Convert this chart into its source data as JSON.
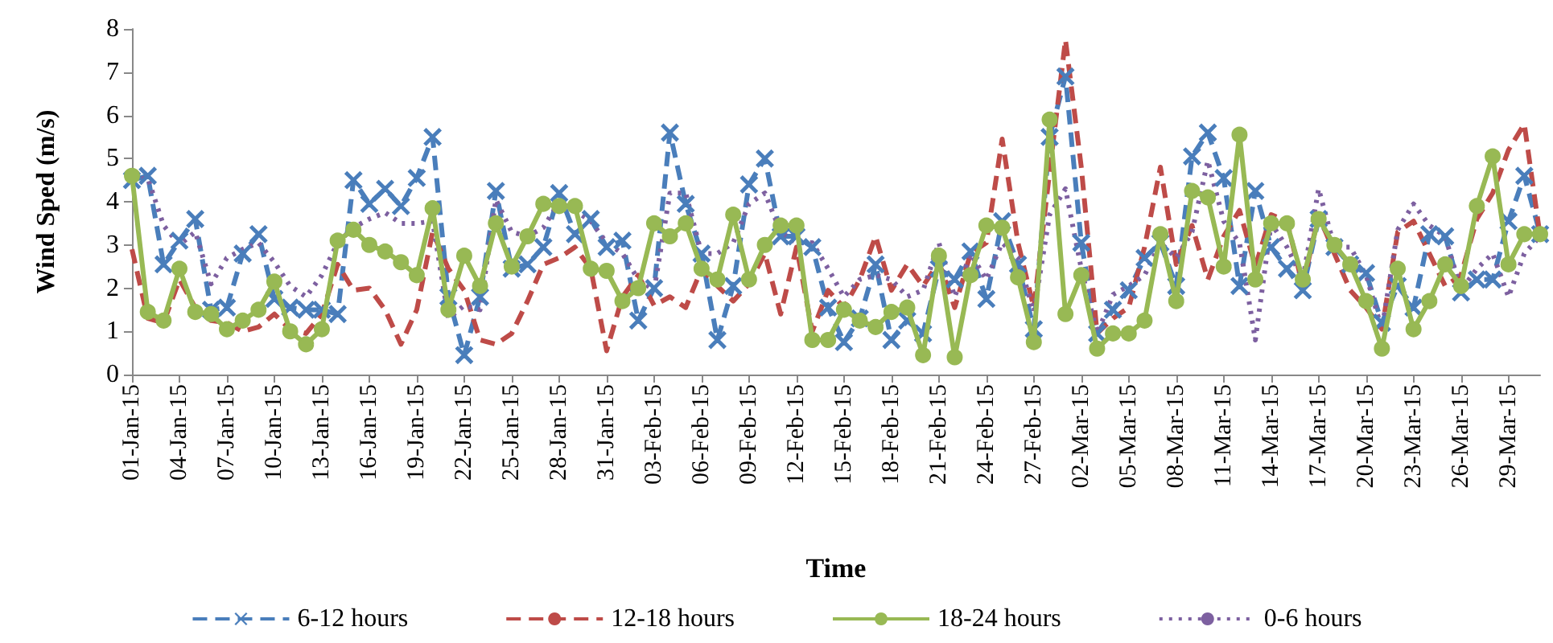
{
  "chart_data": {
    "type": "line",
    "xlabel": "Time",
    "ylabel": "Wind Sped (m/s)",
    "categories": [
      "01-Jan-15",
      null,
      null,
      "04-Jan-15",
      null,
      null,
      "07-Jan-15",
      null,
      null,
      "10-Jan-15",
      null,
      null,
      "13-Jan-15",
      null,
      null,
      "16-Jan-15",
      null,
      null,
      "19-Jan-15",
      null,
      null,
      "22-Jan-15",
      null,
      null,
      "25-Jan-15",
      null,
      null,
      "28-Jan-15",
      null,
      null,
      "31-Jan-15",
      null,
      null,
      "03-Feb-15",
      null,
      null,
      "06-Feb-15",
      null,
      null,
      "09-Feb-15",
      null,
      null,
      "12-Feb-15",
      null,
      null,
      "15-Feb-15",
      null,
      null,
      "18-Feb-15",
      null,
      null,
      "21-Feb-15",
      null,
      null,
      "24-Feb-15",
      null,
      null,
      "27-Feb-15",
      null,
      null,
      "02-Mar-15",
      null,
      null,
      "05-Mar-15",
      null,
      null,
      "08-Mar-15",
      null,
      null,
      "11-Mar-15",
      null,
      null,
      "14-Mar-15",
      null,
      null,
      "17-Mar-15",
      null,
      null,
      "20-Mar-15",
      null,
      null,
      "23-Mar-15",
      null,
      null,
      "26-Mar-15",
      null,
      null,
      "29-Mar-15",
      null,
      null
    ],
    "series": [
      {
        "name": "6-12 hours",
        "color": "#4a7ebb",
        "marker": "cross",
        "line_style": "dashed",
        "values": [
          4.5,
          4.6,
          2.55,
          3.1,
          3.6,
          1.5,
          1.55,
          2.8,
          3.25,
          1.75,
          1.55,
          1.5,
          1.5,
          1.4,
          4.5,
          3.95,
          4.3,
          3.9,
          4.55,
          5.5,
          1.8,
          0.45,
          1.8,
          4.25,
          2.45,
          2.55,
          2.95,
          4.2,
          3.25,
          3.6,
          2.95,
          3.1,
          1.25,
          2.0,
          5.6,
          3.95,
          2.8,
          0.8,
          2.05,
          4.4,
          5.0,
          3.2,
          3.2,
          2.95,
          1.55,
          0.75,
          1.3,
          2.55,
          0.8,
          1.25,
          0.95,
          2.45,
          2.2,
          2.85,
          1.75,
          3.55,
          2.55,
          1.05,
          5.5,
          6.9,
          3.05,
          0.95,
          1.5,
          1.95,
          2.7,
          3.05,
          2.05,
          5.05,
          5.6,
          4.55,
          2.05,
          4.25,
          2.95,
          2.45,
          1.95,
          3.6,
          2.95,
          2.55,
          2.35,
          1.2,
          2.05,
          1.55,
          3.25,
          3.2,
          1.9,
          2.2,
          2.2,
          3.55,
          4.6,
          3.25
        ]
      },
      {
        "name": "12-18 hours",
        "color": "#be4b48",
        "marker": "none",
        "line_style": "dashed",
        "values": [
          2.9,
          1.3,
          1.2,
          2.2,
          1.55,
          1.25,
          1.2,
          1.0,
          1.1,
          1.4,
          1.05,
          0.95,
          1.4,
          2.55,
          1.95,
          2.0,
          1.5,
          0.7,
          1.5,
          3.3,
          2.45,
          1.95,
          0.8,
          0.7,
          0.95,
          1.7,
          2.55,
          2.7,
          2.95,
          2.45,
          0.55,
          1.8,
          2.3,
          1.6,
          1.8,
          1.55,
          2.45,
          2.05,
          1.7,
          2.1,
          2.8,
          1.4,
          2.95,
          1.0,
          1.95,
          1.55,
          2.2,
          3.2,
          1.95,
          2.55,
          2.05,
          2.6,
          1.55,
          2.8,
          3.05,
          5.45,
          3.05,
          1.55,
          4.7,
          7.75,
          4.8,
          0.95,
          1.3,
          1.55,
          2.95,
          4.8,
          2.55,
          3.45,
          2.2,
          3.2,
          3.8,
          2.5,
          3.7,
          3.55,
          2.05,
          3.7,
          2.8,
          1.95,
          1.55,
          1.05,
          3.3,
          3.55,
          2.8,
          2.05,
          2.3,
          3.6,
          4.2,
          5.2,
          5.8,
          3.2
        ]
      },
      {
        "name": "18-24 hours",
        "color": "#98b954",
        "marker": "circle",
        "line_style": "solid",
        "values": [
          4.6,
          1.45,
          1.25,
          2.45,
          1.45,
          1.4,
          1.05,
          1.25,
          1.5,
          2.15,
          1.0,
          0.7,
          1.05,
          3.1,
          3.35,
          3.0,
          2.85,
          2.6,
          2.3,
          3.85,
          1.5,
          2.75,
          2.05,
          3.5,
          2.5,
          3.2,
          3.95,
          3.9,
          3.9,
          2.45,
          2.4,
          1.7,
          2.0,
          3.5,
          3.2,
          3.5,
          2.45,
          2.2,
          3.7,
          2.2,
          3.0,
          3.45,
          3.45,
          0.8,
          0.8,
          1.5,
          1.25,
          1.1,
          1.45,
          1.55,
          0.45,
          2.75,
          0.4,
          2.3,
          3.45,
          3.4,
          2.25,
          0.75,
          5.9,
          1.4,
          2.3,
          0.6,
          0.95,
          0.95,
          1.25,
          3.25,
          1.7,
          4.25,
          4.1,
          2.5,
          5.55,
          2.2,
          3.5,
          3.5,
          2.2,
          3.6,
          3.0,
          2.55,
          1.7,
          0.6,
          2.45,
          1.05,
          1.7,
          2.55,
          2.05,
          3.9,
          5.05,
          2.55,
          3.25,
          3.25
        ]
      },
      {
        "name": "0-6 hours",
        "color": "#7d60a0",
        "marker": "none",
        "line_style": "dotted",
        "values": [
          4.5,
          4.55,
          3.45,
          3.0,
          3.3,
          2.1,
          2.7,
          2.9,
          3.05,
          2.6,
          2.05,
          1.8,
          2.3,
          3.05,
          3.4,
          3.6,
          3.75,
          3.5,
          3.5,
          3.55,
          1.3,
          1.6,
          1.5,
          4.05,
          3.3,
          3.2,
          3.4,
          4.0,
          3.8,
          3.55,
          3.05,
          2.8,
          2.2,
          1.95,
          4.2,
          4.2,
          2.8,
          2.8,
          3.05,
          3.95,
          4.2,
          3.3,
          3.05,
          3.05,
          2.45,
          1.8,
          2.2,
          2.3,
          2.2,
          1.8,
          1.95,
          3.05,
          1.8,
          2.8,
          2.2,
          3.05,
          2.7,
          1.45,
          3.7,
          4.3,
          2.45,
          0.95,
          1.85,
          2.05,
          2.3,
          3.05,
          2.7,
          3.3,
          4.95,
          3.55,
          3.05,
          0.8,
          3.5,
          2.95,
          2.2,
          4.3,
          2.95,
          2.95,
          2.3,
          1.05,
          3.35,
          3.95,
          3.45,
          3.2,
          1.95,
          2.45,
          2.8,
          1.8,
          2.8,
          3.2
        ]
      }
    ],
    "ylim": [
      0,
      8
    ],
    "yticks": [
      0,
      1,
      2,
      3,
      4,
      5,
      6,
      7,
      8
    ],
    "grid": false,
    "legend": "bottom"
  }
}
